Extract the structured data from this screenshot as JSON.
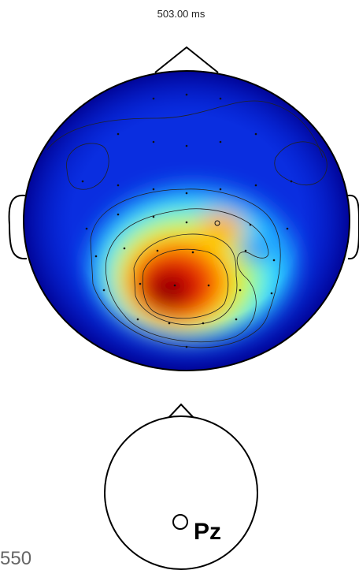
{
  "header": {
    "title": "503.00 ms"
  },
  "electrode": {
    "label": "Pz"
  },
  "footer": {
    "label": "550"
  }
}
